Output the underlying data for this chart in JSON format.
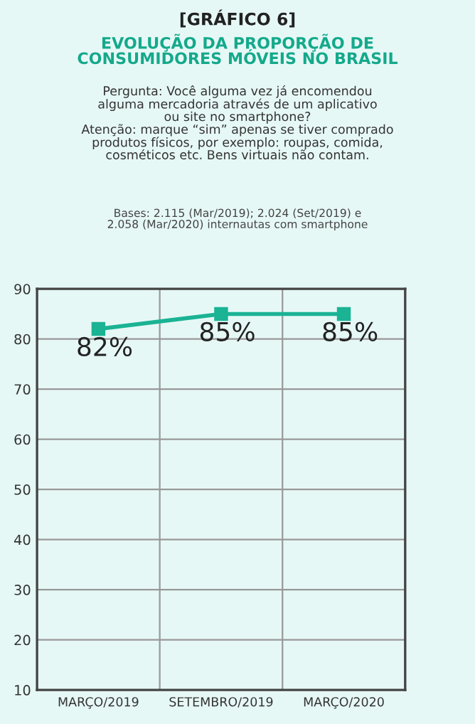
{
  "chart_data": {
    "type": "line",
    "title": "[GRÁFICO 6]",
    "subtitle": "EVOLUÇÃO DA PROPORÇÃO DE\nCONSUMIDORES MÓVEIS NO BRASIL",
    "annotations": [
      "Pergunta: Você alguma vez já encomendou\nalguma mercadoria através de um aplicativo\nou site no smartphone?\nAtenção: marque “sim” apenas se tiver comprado\nprodutos físicos, por exemplo: roupas, comida,\ncosméticos etc. Bens virtuais não contam.",
      "Bases: 2.115 (Mar/2019); 2.024 (Set/2019) e\n2.058 (Mar/2020) internautas com smartphone"
    ],
    "categories": [
      "MARÇO/2019",
      "SETEMBRO/2019",
      "MARÇO/2020"
    ],
    "series": [
      {
        "color": "#1ab394",
        "values": [
          82,
          85,
          85
        ],
        "value_labels": [
          "82%",
          "85%",
          "85%"
        ]
      }
    ],
    "ylim": [
      10,
      90
    ],
    "yticks": [
      10,
      20,
      30,
      40,
      50,
      60,
      70,
      80,
      90
    ],
    "grid": true,
    "marker": "square",
    "line_style": "solid"
  }
}
